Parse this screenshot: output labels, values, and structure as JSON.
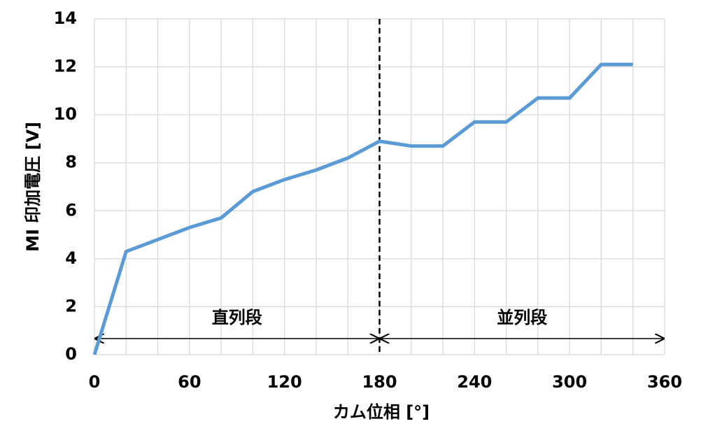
{
  "chart_data": {
    "type": "line",
    "xlabel": "カム位相 [°]",
    "ylabel": "MI 印加電圧 [V]",
    "x": [
      0,
      20,
      40,
      60,
      80,
      100,
      120,
      140,
      160,
      180,
      200,
      220,
      240,
      260,
      280,
      300,
      320,
      340
    ],
    "series": [
      {
        "color": "#5b9bd5",
        "values": [
          0,
          4.3,
          4.8,
          5.3,
          5.7,
          6.8,
          7.3,
          7.7,
          8.2,
          8.9,
          8.7,
          8.7,
          9.7,
          9.7,
          10.7,
          10.7,
          12.1,
          12.1
        ]
      }
    ],
    "xlim": [
      0,
      360
    ],
    "xticks": [
      0,
      60,
      120,
      180,
      240,
      300,
      360
    ],
    "xgrid": [
      0,
      20,
      40,
      60,
      80,
      100,
      120,
      140,
      160,
      180,
      200,
      220,
      240,
      260,
      280,
      300,
      320,
      340,
      360
    ],
    "ylim": [
      0,
      14
    ],
    "yticks": [
      0,
      2,
      4,
      6,
      8,
      10,
      12,
      14
    ],
    "grid": true,
    "vline": 180,
    "annotations": [
      {
        "text": "直列段",
        "x": [
          0,
          180
        ]
      },
      {
        "text": "並列段",
        "x": [
          180,
          360
        ]
      }
    ]
  }
}
